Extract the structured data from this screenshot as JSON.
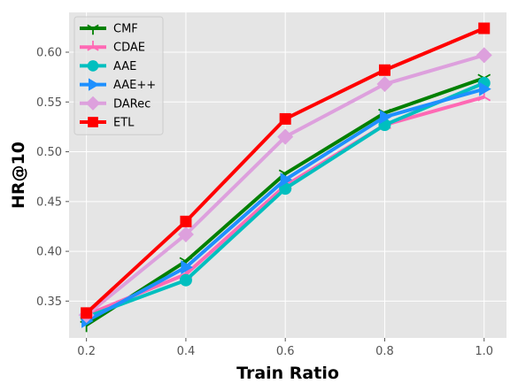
{
  "chart_data": {
    "type": "line",
    "xlabel": "Train Ratio",
    "ylabel": "HR@10",
    "x": [
      0.2,
      0.4,
      0.6,
      0.8,
      1.0
    ],
    "xlim": [
      0.165,
      1.045
    ],
    "ylim": [
      0.313,
      0.64
    ],
    "xticks": [
      0.2,
      0.4,
      0.6,
      0.8,
      1.0
    ],
    "xtick_labels": [
      "0.2",
      "0.4",
      "0.6",
      "0.8",
      "1.0"
    ],
    "yticks": [
      0.35,
      0.4,
      0.45,
      0.5,
      0.55,
      0.6
    ],
    "ytick_labels": [
      "0.35",
      "0.40",
      "0.45",
      "0.50",
      "0.55",
      "0.60"
    ],
    "grid": true,
    "legend_position": "top-left",
    "series": [
      {
        "name": "CMF",
        "color": "#008000",
        "marker": "tri-down",
        "values": [
          0.326,
          0.39,
          0.478,
          0.539,
          0.574
        ]
      },
      {
        "name": "CDAE",
        "color": "#ff69b4",
        "marker": "tri-up",
        "values": [
          0.336,
          0.377,
          0.466,
          0.527,
          0.555
        ]
      },
      {
        "name": "AAE",
        "color": "#00bfbf",
        "marker": "circle",
        "values": [
          0.334,
          0.371,
          0.463,
          0.527,
          0.569
        ]
      },
      {
        "name": "AAE++",
        "color": "#1e90ff",
        "marker": "triangle-right",
        "values": [
          0.33,
          0.384,
          0.472,
          0.535,
          0.563
        ]
      },
      {
        "name": "DARec",
        "color": "#dda0dd",
        "marker": "diamond",
        "values": [
          0.336,
          0.417,
          0.515,
          0.568,
          0.597
        ]
      },
      {
        "name": "ETL",
        "color": "#ff0000",
        "marker": "square",
        "values": [
          0.338,
          0.43,
          0.533,
          0.582,
          0.624
        ]
      }
    ]
  }
}
